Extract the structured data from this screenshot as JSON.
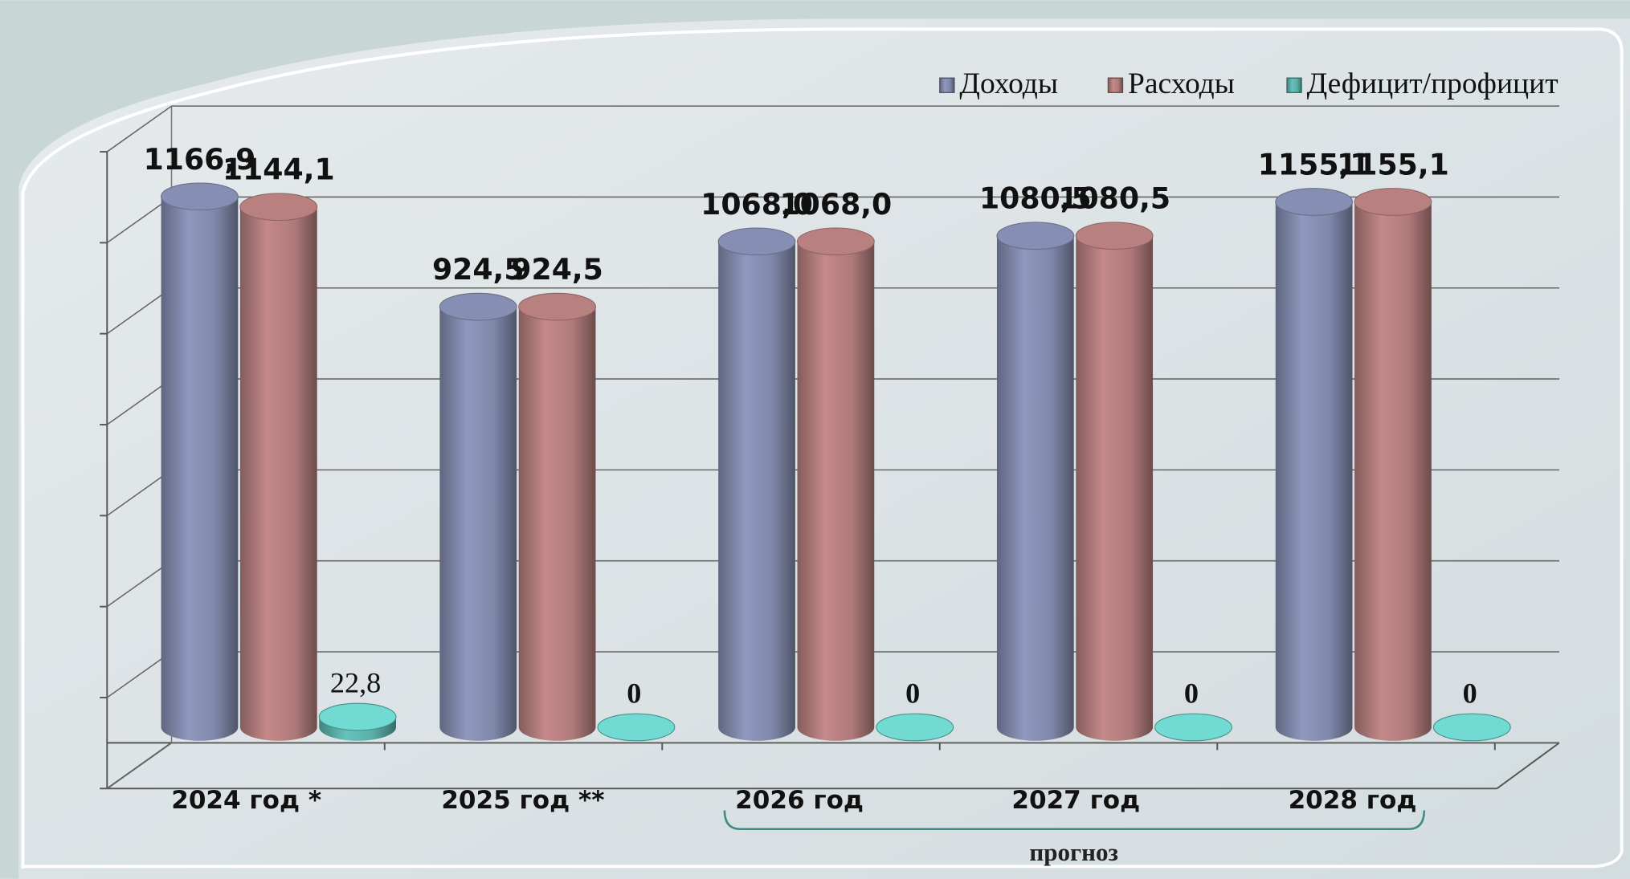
{
  "chart_data": {
    "type": "bar",
    "categories": [
      "2024 год *",
      "2025 год **",
      "2026 год",
      "2027 год",
      "2028 год"
    ],
    "series": [
      {
        "name": "Доходы",
        "color": "#8088aa",
        "values": [
          1166.9,
          924.5,
          1068.0,
          1080.5,
          1155.1
        ],
        "value_labels": [
          "1166,9",
          "924,5",
          "1068,0",
          "1080,5",
          "1155,1"
        ]
      },
      {
        "name": "Расходы",
        "color": "#b07a7a",
        "values": [
          1144.1,
          924.5,
          1068.0,
          1080.5,
          1155.1
        ],
        "value_labels": [
          "1144,1",
          "924,5",
          "1068,0",
          "1080,5",
          "1155,1"
        ]
      },
      {
        "name": "Дефицит/профицит",
        "color": "#5aaea8",
        "values": [
          22.8,
          0,
          0,
          0,
          0
        ],
        "value_labels": [
          "22,8",
          "0",
          "0",
          "0",
          "0"
        ]
      }
    ],
    "ylim": [
      0,
      1400
    ],
    "yticks": [
      0,
      200,
      400,
      600,
      800,
      1000,
      1200,
      1400
    ],
    "grid": true,
    "legend": "top-right",
    "annotation": "прогноз"
  }
}
